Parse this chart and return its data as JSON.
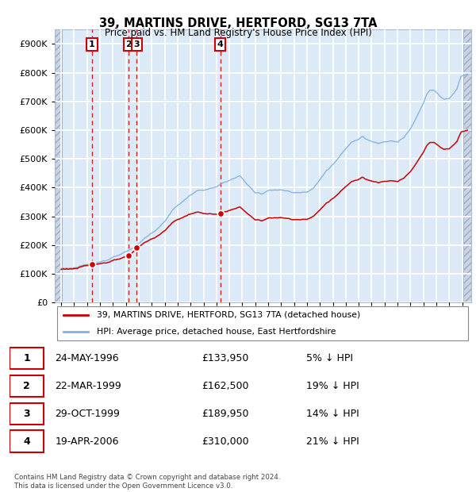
{
  "title": "39, MARTINS DRIVE, HERTFORD, SG13 7TA",
  "subtitle": "Price paid vs. HM Land Registry's House Price Index (HPI)",
  "legend_line1": "39, MARTINS DRIVE, HERTFORD, SG13 7TA (detached house)",
  "legend_line2": "HPI: Average price, detached house, East Hertfordshire",
  "sale_dates_num": [
    1996.38,
    1999.22,
    1999.83,
    2006.3
  ],
  "sale_prices": [
    133950,
    162500,
    189950,
    310000
  ],
  "sale_labels": [
    "1",
    "2",
    "3",
    "4"
  ],
  "table_rows": [
    [
      "1",
      "24-MAY-1996",
      "£133,950",
      "5% ↓ HPI"
    ],
    [
      "2",
      "22-MAR-1999",
      "£162,500",
      "19% ↓ HPI"
    ],
    [
      "3",
      "29-OCT-1999",
      "£189,950",
      "14% ↓ HPI"
    ],
    [
      "4",
      "19-APR-2006",
      "£310,000",
      "21% ↓ HPI"
    ]
  ],
  "footnote": "Contains HM Land Registry data © Crown copyright and database right 2024.\nThis data is licensed under the Open Government Licence v3.0.",
  "ylim": [
    0,
    950000
  ],
  "xlim_start": 1993.5,
  "xlim_end": 2025.7,
  "hpi_color": "#7fb2e0",
  "sale_color": "#cc0000",
  "grid_color": "#ffffff",
  "vline_color": "#cc0000",
  "plot_bg": "#dce9f7"
}
